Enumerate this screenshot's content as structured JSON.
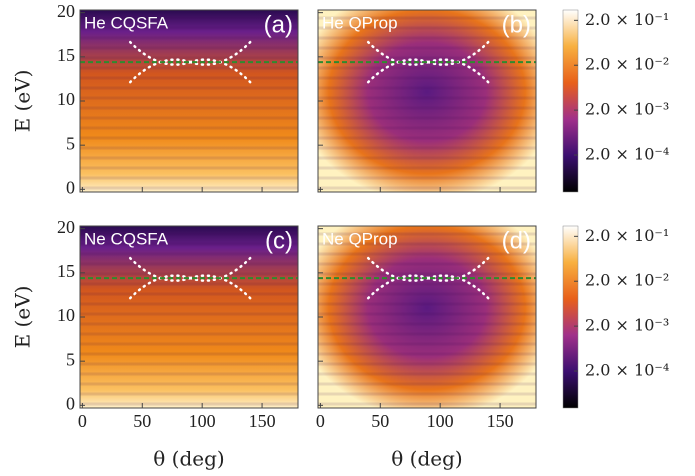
{
  "chart_data": [
    {
      "type": "heatmap",
      "title": "He CQSFA",
      "panel_label": "(a)",
      "ylabel": "E (eV)",
      "xlim": [
        -2,
        180
      ],
      "xticks": [
        0,
        50,
        100,
        150
      ],
      "ylim": [
        -0.3,
        20.3
      ],
      "yticks": [
        0,
        5,
        10,
        15,
        20
      ],
      "reference_line": 14.4,
      "reference_color": "#2e8b2e"
    },
    {
      "type": "heatmap",
      "title": "He QProp",
      "panel_label": "(b)",
      "xlim": [
        -2,
        180
      ],
      "xticks": [
        0,
        50,
        100,
        150
      ],
      "ylim": [
        -0.3,
        20.3
      ],
      "yticks": [
        0,
        5,
        10,
        15,
        20
      ],
      "reference_line": 14.4,
      "reference_color": "#2e8b2e",
      "colorbar": {
        "log": true,
        "clim": [
          3e-05,
          0.34
        ],
        "ticks": [
          {
            "value": 0.2,
            "label": "2.0 × 10⁻¹"
          },
          {
            "value": 0.02,
            "label": "2.0 × 10⁻²"
          },
          {
            "value": 0.002,
            "label": "2.0 × 10⁻³"
          },
          {
            "value": 0.0002,
            "label": "2.0 × 10⁻⁴"
          }
        ]
      }
    },
    {
      "type": "heatmap",
      "title": "Ne CQSFA",
      "panel_label": "(c)",
      "ylabel": "E (eV)",
      "xlabel": "θ (deg)",
      "xlim": [
        -2,
        180
      ],
      "xticks": [
        0,
        50,
        100,
        150
      ],
      "ylim": [
        -0.3,
        20.3
      ],
      "yticks": [
        0,
        5,
        10,
        15,
        20
      ],
      "reference_line": 14.4,
      "reference_color": "#2e8b2e"
    },
    {
      "type": "heatmap",
      "title": "Ne QProp",
      "panel_label": "(d)",
      "xlabel": "θ (deg)",
      "xlim": [
        -2,
        180
      ],
      "xticks": [
        0,
        50,
        100,
        150
      ],
      "ylim": [
        -0.3,
        20.3
      ],
      "yticks": [
        0,
        5,
        10,
        15,
        20
      ],
      "reference_line": 14.4,
      "reference_color": "#2e8b2e",
      "colorbar": {
        "log": true,
        "clim": [
          3e-05,
          0.34
        ],
        "ticks": [
          {
            "value": 0.2,
            "label": "2.0 × 10⁻¹"
          },
          {
            "value": 0.02,
            "label": "2.0 × 10⁻²"
          },
          {
            "value": 0.002,
            "label": "2.0 × 10⁻³"
          },
          {
            "value": 0.0002,
            "label": "2.0 × 10⁻⁴"
          }
        ]
      }
    }
  ]
}
